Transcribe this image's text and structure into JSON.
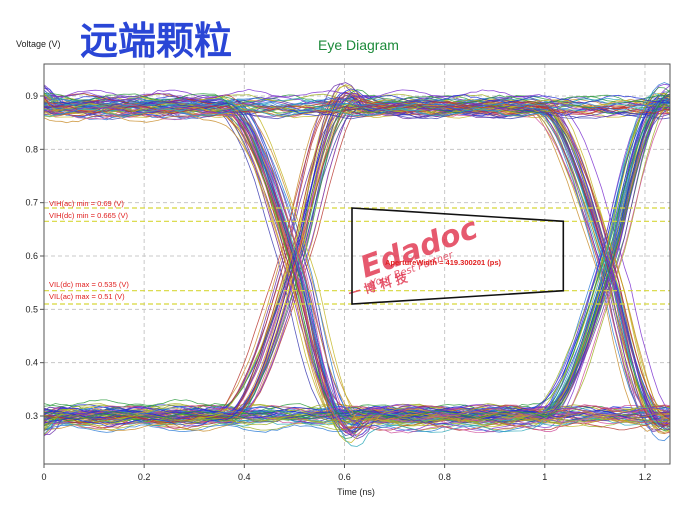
{
  "header": {
    "banner": "远端颗粒",
    "title": "Eye Diagram",
    "title_color": "#1c8a3a",
    "banner_color": "#2a46d6"
  },
  "axes": {
    "ylabel": "Voltage (V)",
    "xlabel": "Time (ns)"
  },
  "chart_data": {
    "type": "line",
    "title": "Eye Diagram",
    "xlabel": "Time (ns)",
    "ylabel": "Voltage (V)",
    "xlim": [
      0,
      1.25
    ],
    "ylim": [
      0.21,
      0.96
    ],
    "xticks": [
      0,
      0.2,
      0.4,
      0.6,
      0.8,
      1,
      1.2
    ],
    "xtick_labels": [
      "0",
      "0.2",
      "0.4",
      "0.6",
      "0.8",
      "1",
      "1.2"
    ],
    "yticks": [
      0.3,
      0.4,
      0.5,
      0.6,
      0.7,
      0.8,
      0.9
    ],
    "ytick_labels": [
      "0.3",
      "0.4",
      "0.5",
      "0.6",
      "0.7",
      "0.8",
      "0.9"
    ],
    "grid": true,
    "eye": {
      "unit_interval_ns": 0.625,
      "crossing_times_ns": [
        -0.125,
        0.5,
        1.125
      ],
      "high_level": 0.88,
      "low_level": 0.3
    },
    "thresholds": [
      {
        "label": "VIH(ac) min = 0.69 (V)",
        "value": 0.69,
        "color": "#d8d83a"
      },
      {
        "label": "VIH(dc) min = 0.665 (V)",
        "value": 0.665,
        "color": "#d8d83a"
      },
      {
        "label": "VIL(dc) max = 0.535 (V)",
        "value": 0.535,
        "color": "#d8d83a"
      },
      {
        "label": "VIL(ac) max = 0.51 (V)",
        "value": 0.51,
        "color": "#d8d83a"
      }
    ],
    "aperture": {
      "label": "ApertureWidth = 419.300201 (ps)",
      "polygon": [
        [
          0.615,
          0.69
        ],
        [
          1.037,
          0.665
        ],
        [
          1.037,
          0.535
        ],
        [
          0.615,
          0.51
        ]
      ]
    },
    "trace_colors": [
      "#1f2fd8",
      "#b8362e",
      "#2c9a3e",
      "#c98d2b",
      "#7b2fd0",
      "#2aa8b8",
      "#a0b020",
      "#d04d9a",
      "#6a2ea8",
      "#2b7bd6",
      "#c2b520",
      "#3b3bb0"
    ]
  },
  "watermark": {
    "brand": "Edadoc",
    "tagline": "Your Best Partner",
    "cn": "一 博 科 技",
    "color": "#e0304a"
  }
}
